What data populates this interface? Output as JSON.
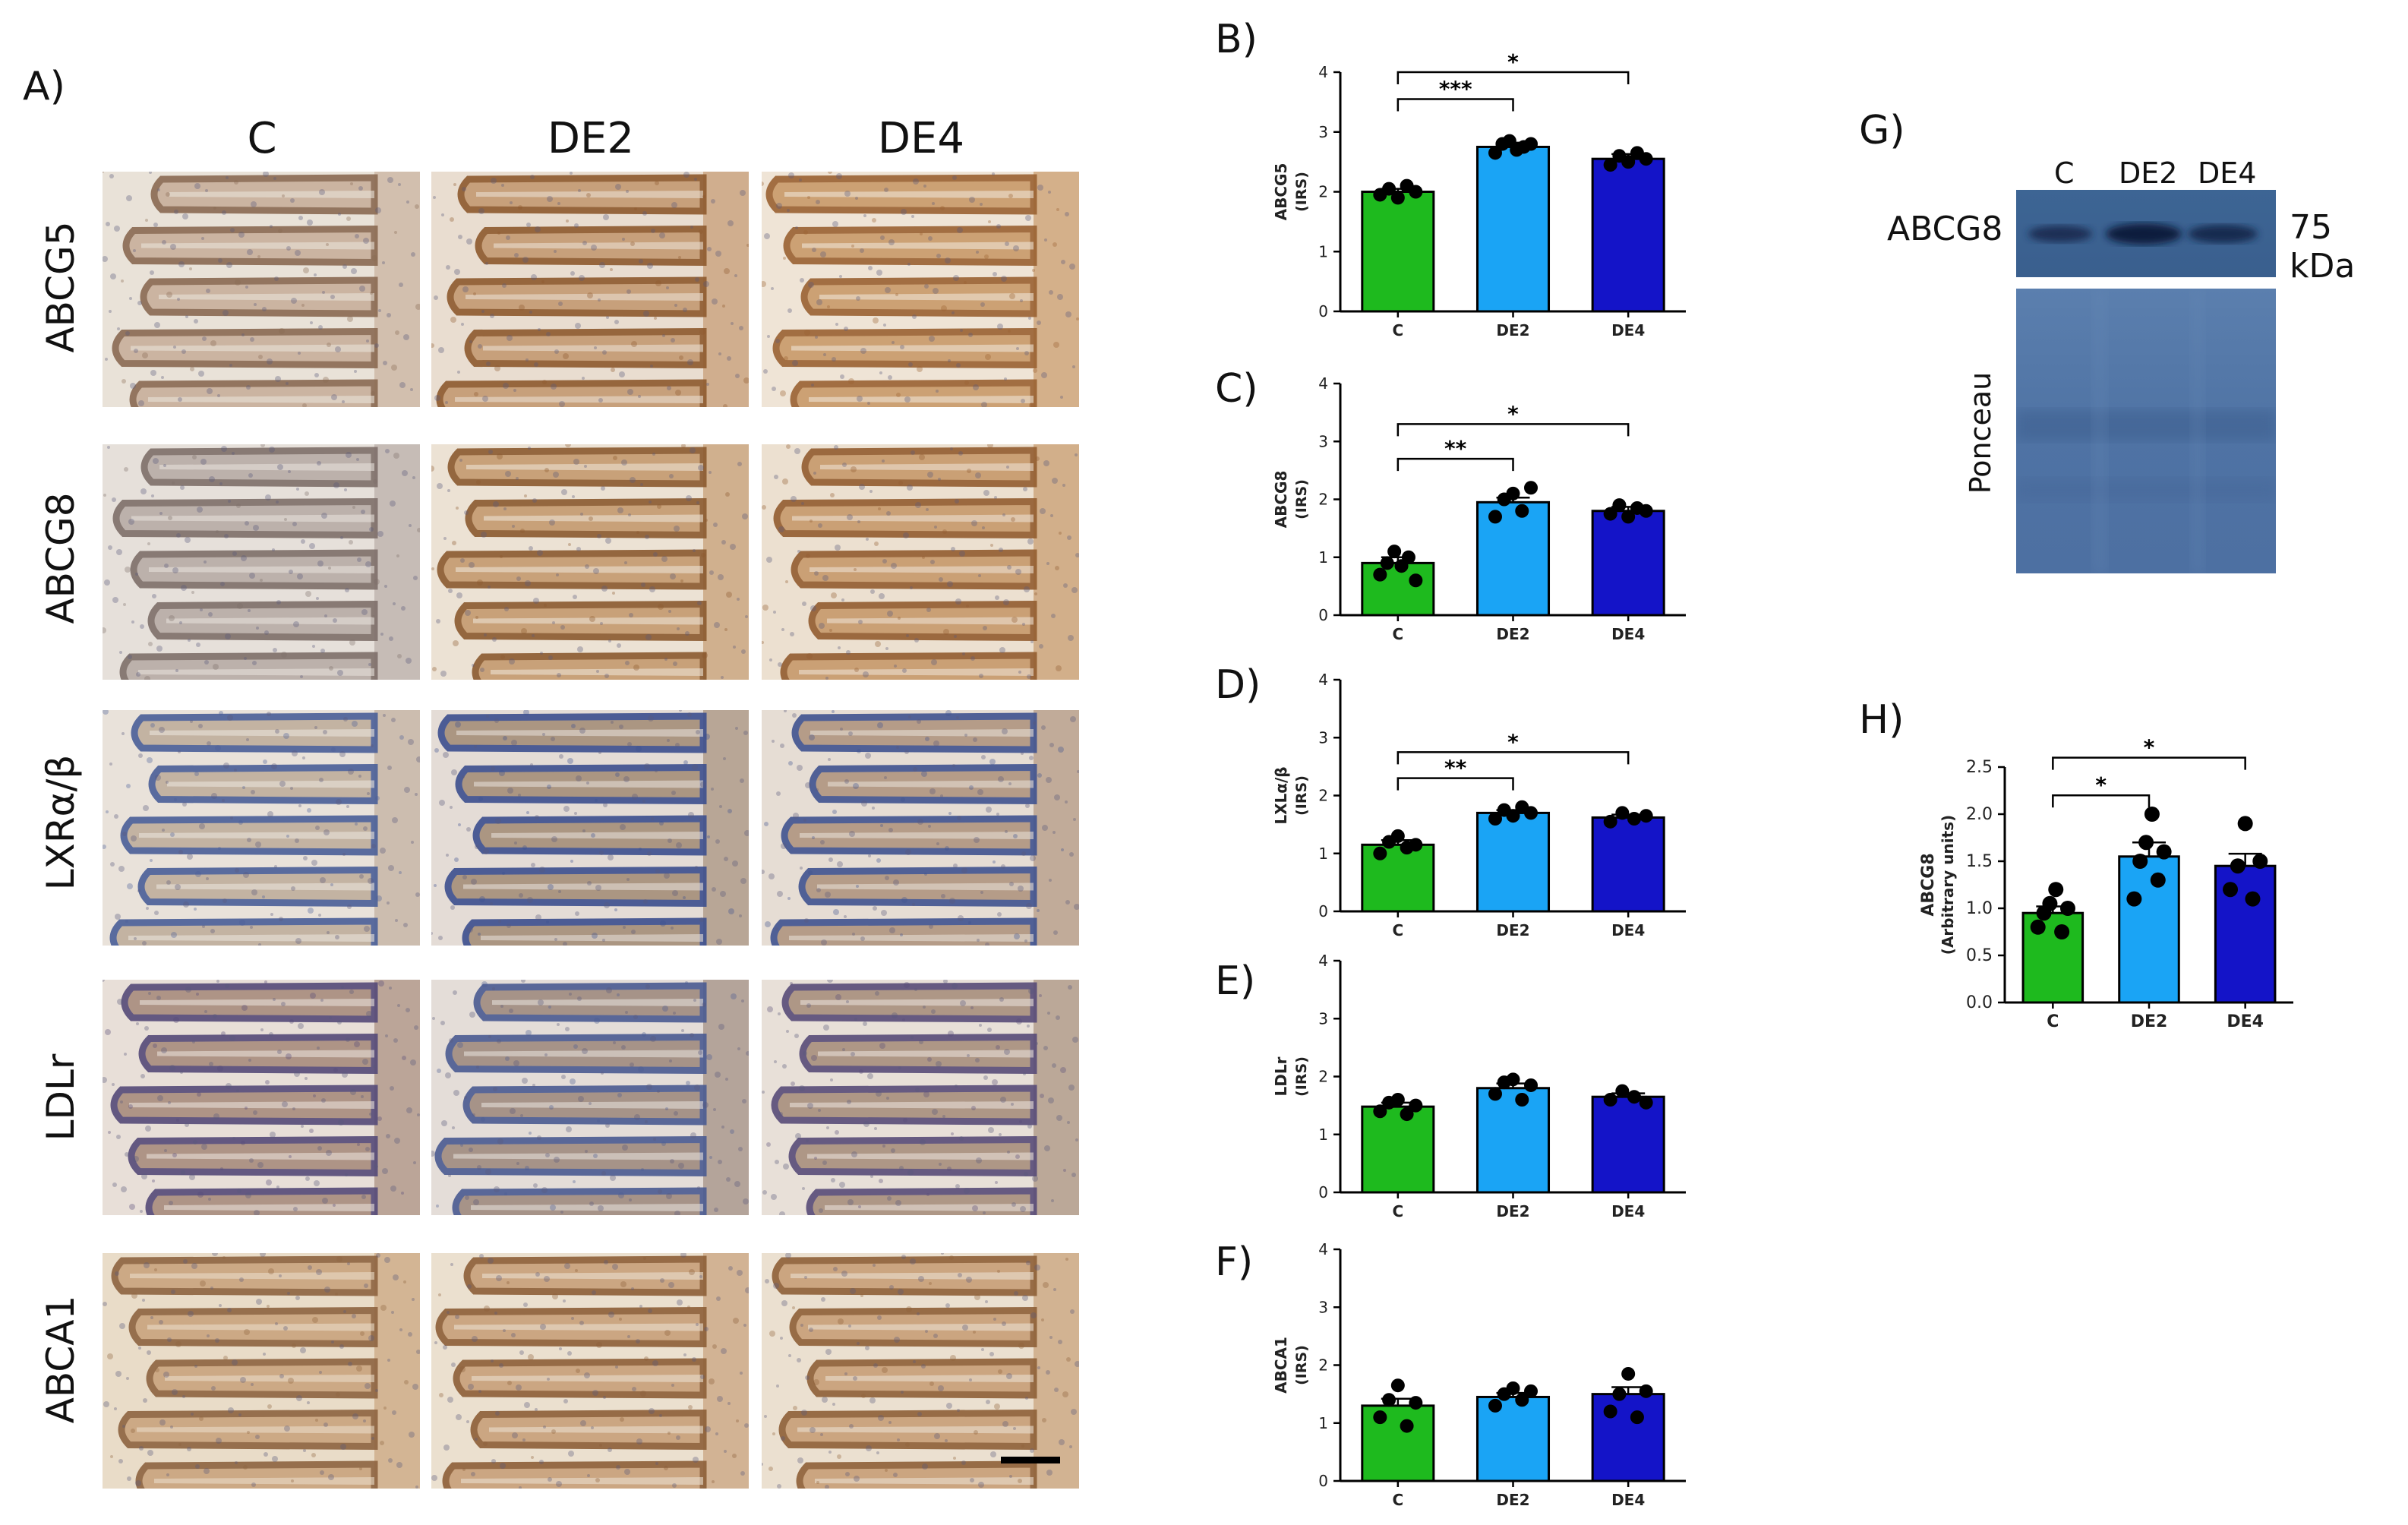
{
  "panel_A": {
    "letter": "A)",
    "columns": [
      "C",
      "DE2",
      "DE4"
    ],
    "rows": [
      "ABCG5",
      "ABCG8",
      "LXRα/β",
      "LDLr",
      "ABCA1"
    ]
  },
  "panel_G": {
    "letter": "G)",
    "lanes": [
      "C",
      "DE2",
      "DE4"
    ],
    "band_label": "ABCG8",
    "kda": "75 kDa",
    "loading_label": "Ponceau"
  },
  "colors": {
    "C": "#1eba1e",
    "DE2": "#1aa4f5",
    "DE4": "#1414c8"
  },
  "chart_data": [
    {
      "type": "bar",
      "letter": "B)",
      "categories": [
        "C",
        "DE2",
        "DE4"
      ],
      "values": [
        2.0,
        2.75,
        2.55
      ],
      "errors": [
        0.05,
        0.07,
        0.08
      ],
      "points": [
        [
          1.95,
          2.05,
          1.9,
          2.1,
          2.0
        ],
        [
          2.65,
          2.8,
          2.85,
          2.7,
          2.75,
          2.8
        ],
        [
          2.45,
          2.6,
          2.5,
          2.65,
          2.55
        ]
      ],
      "ylabel": "ABCG5",
      "ylabel2": "(IRS)",
      "yticks": [
        "0",
        "1",
        "2",
        "3",
        "4"
      ],
      "ylim": [
        0,
        4
      ],
      "brackets": [
        {
          "from": 0,
          "to": 1,
          "y": 3.55,
          "label": "***"
        },
        {
          "from": 0,
          "to": 2,
          "y": 4.0,
          "label": "*"
        }
      ]
    },
    {
      "type": "bar",
      "letter": "C)",
      "categories": [
        "C",
        "DE2",
        "DE4"
      ],
      "values": [
        0.9,
        1.95,
        1.8
      ],
      "errors": [
        0.1,
        0.08,
        0.07
      ],
      "points": [
        [
          0.7,
          0.9,
          1.1,
          0.85,
          1.0,
          0.6
        ],
        [
          1.7,
          2.0,
          2.1,
          1.8,
          2.2
        ],
        [
          1.75,
          1.9,
          1.7,
          1.85,
          1.8
        ]
      ],
      "ylabel": "ABCG8",
      "ylabel2": "(IRS)",
      "yticks": [
        "0",
        "1",
        "2",
        "3",
        "4"
      ],
      "ylim": [
        0,
        4
      ],
      "brackets": [
        {
          "from": 0,
          "to": 1,
          "y": 2.7,
          "label": "**"
        },
        {
          "from": 0,
          "to": 2,
          "y": 3.3,
          "label": "*"
        }
      ]
    },
    {
      "type": "bar",
      "letter": "D)",
      "categories": [
        "C",
        "DE2",
        "DE4"
      ],
      "values": [
        1.15,
        1.7,
        1.62
      ],
      "errors": [
        0.08,
        0.05,
        0.05
      ],
      "points": [
        [
          1.0,
          1.2,
          1.3,
          1.1,
          1.15
        ],
        [
          1.6,
          1.75,
          1.65,
          1.8,
          1.7
        ],
        [
          1.55,
          1.7,
          1.6,
          1.65
        ]
      ],
      "ylabel": "LXLα/β",
      "ylabel2": "(IRS)",
      "yticks": [
        "0",
        "1",
        "2",
        "3",
        "4"
      ],
      "ylim": [
        0,
        4
      ],
      "brackets": [
        {
          "from": 0,
          "to": 1,
          "y": 2.3,
          "label": "**"
        },
        {
          "from": 0,
          "to": 2,
          "y": 2.75,
          "label": "*"
        }
      ]
    },
    {
      "type": "bar",
      "letter": "E)",
      "categories": [
        "C",
        "DE2",
        "DE4"
      ],
      "values": [
        1.48,
        1.8,
        1.65
      ],
      "errors": [
        0.07,
        0.08,
        0.06
      ],
      "points": [
        [
          1.4,
          1.55,
          1.6,
          1.35,
          1.5
        ],
        [
          1.7,
          1.9,
          1.95,
          1.6,
          1.85
        ],
        [
          1.6,
          1.75,
          1.65,
          1.55
        ]
      ],
      "ylabel": "LDLr",
      "ylabel2": "(IRS)",
      "yticks": [
        "0",
        "1",
        "2",
        "3",
        "4"
      ],
      "ylim": [
        0,
        4
      ],
      "brackets": []
    },
    {
      "type": "bar",
      "letter": "F)",
      "categories": [
        "C",
        "DE2",
        "DE4"
      ],
      "values": [
        1.3,
        1.45,
        1.5
      ],
      "errors": [
        0.12,
        0.07,
        0.12
      ],
      "points": [
        [
          1.1,
          1.4,
          1.65,
          0.95,
          1.35
        ],
        [
          1.3,
          1.5,
          1.6,
          1.4,
          1.55
        ],
        [
          1.2,
          1.5,
          1.85,
          1.1,
          1.55
        ]
      ],
      "ylabel": "ABCA1",
      "ylabel2": "(IRS)",
      "yticks": [
        "0",
        "1",
        "2",
        "3",
        "4"
      ],
      "ylim": [
        0,
        4
      ],
      "brackets": []
    },
    {
      "type": "bar",
      "letter": "H)",
      "categories": [
        "C",
        "DE2",
        "DE4"
      ],
      "values": [
        0.95,
        1.55,
        1.45
      ],
      "errors": [
        0.07,
        0.15,
        0.13
      ],
      "points": [
        [
          0.8,
          0.95,
          1.05,
          1.2,
          0.75,
          1.0
        ],
        [
          1.1,
          1.5,
          1.7,
          2.0,
          1.3,
          1.6
        ],
        [
          1.2,
          1.45,
          1.9,
          1.1,
          1.5
        ]
      ],
      "ylabel": "ABCG8",
      "ylabel2": "(Arbitrary units)",
      "yticks": [
        "0.0",
        "0.5",
        "1.0",
        "1.5",
        "2.0",
        "2.5"
      ],
      "ylim": [
        0,
        2.5
      ],
      "brackets": [
        {
          "from": 0,
          "to": 1,
          "y": 2.2,
          "label": "*"
        },
        {
          "from": 0,
          "to": 2,
          "y": 2.6,
          "label": "*"
        }
      ]
    }
  ]
}
